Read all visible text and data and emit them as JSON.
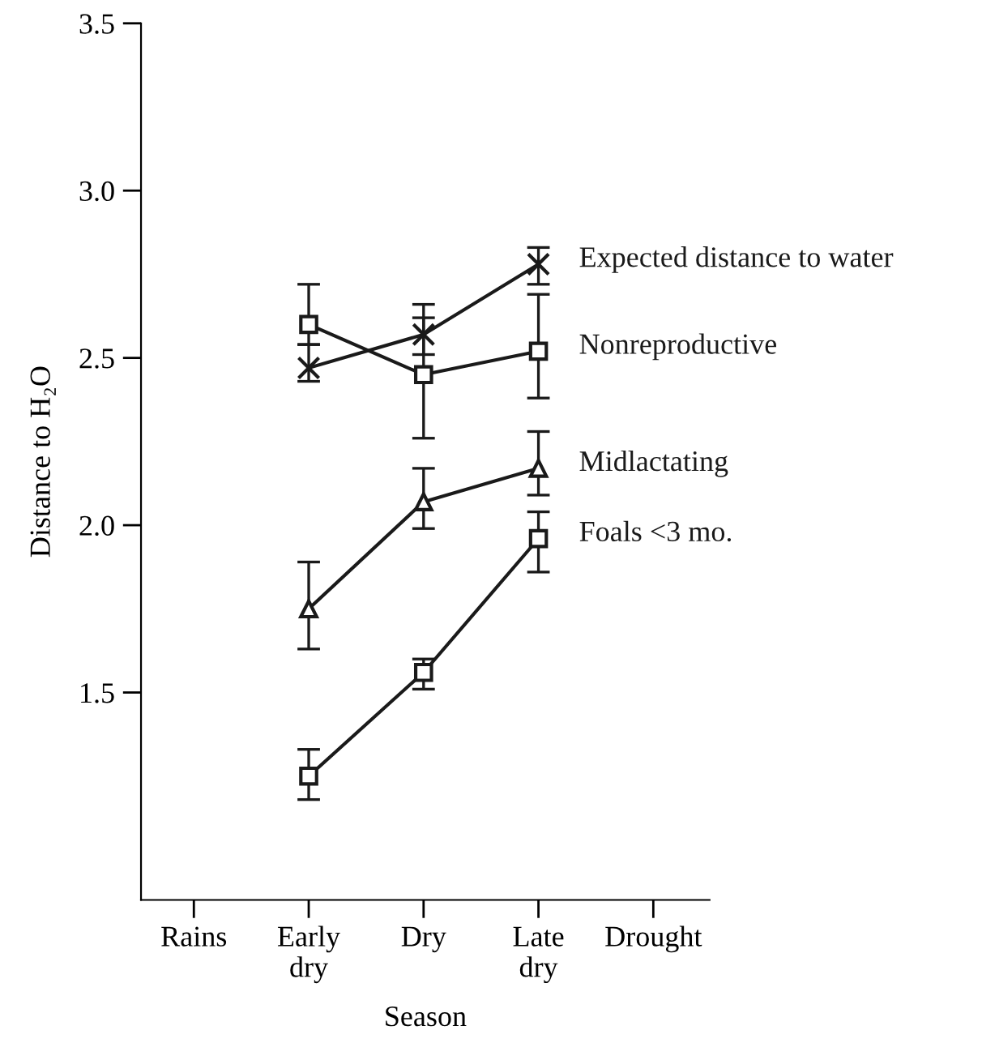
{
  "chart_data": {
    "type": "line",
    "xlabel": "Season",
    "ylabel": "Distance to H₂O",
    "categories": [
      "Rains",
      "Early\ndry",
      "Dry",
      "Late\ndry",
      "Drought"
    ],
    "ylim": [
      0.88,
      3.5
    ],
    "yticks": [
      {
        "value": 1.5,
        "label": "1.5"
      },
      {
        "value": 2.0,
        "label": "2.0"
      },
      {
        "value": 2.5,
        "label": "2.5"
      },
      {
        "value": 3.0,
        "label": "3.0"
      },
      {
        "value": 3.5,
        "label": "3.5"
      }
    ],
    "grid": false,
    "legend": false,
    "line_style": "solid",
    "series": [
      {
        "name": "Expected distance to water",
        "color": "#1a1a1a",
        "marker": "cross",
        "values": [
          null,
          2.47,
          2.57,
          2.78,
          null
        ],
        "errors": [
          null,
          [
            2.43,
            2.54
          ],
          [
            2.51,
            2.62
          ],
          [
            2.72,
            2.83
          ],
          null
        ]
      },
      {
        "name": "Nonreproductive",
        "color": "#1a1a1a",
        "marker": "square",
        "values": [
          null,
          2.6,
          2.45,
          2.52,
          null
        ],
        "errors": [
          null,
          [
            2.54,
            2.72
          ],
          [
            2.26,
            2.66
          ],
          [
            2.38,
            2.69
          ],
          null
        ]
      },
      {
        "name": "Midlactating",
        "color": "#1a1a1a",
        "marker": "triangle",
        "values": [
          null,
          1.75,
          2.07,
          2.17,
          null
        ],
        "errors": [
          null,
          [
            1.63,
            1.89
          ],
          [
            1.99,
            2.17
          ],
          [
            2.09,
            2.28
          ],
          null
        ]
      },
      {
        "name": "Foals <3 mo.",
        "color": "#1a1a1a",
        "marker": "square",
        "values": [
          null,
          1.25,
          1.56,
          1.96,
          null
        ],
        "errors": [
          null,
          [
            1.18,
            1.33
          ],
          [
            1.51,
            1.6
          ],
          [
            1.86,
            2.04
          ],
          null
        ]
      }
    ]
  }
}
